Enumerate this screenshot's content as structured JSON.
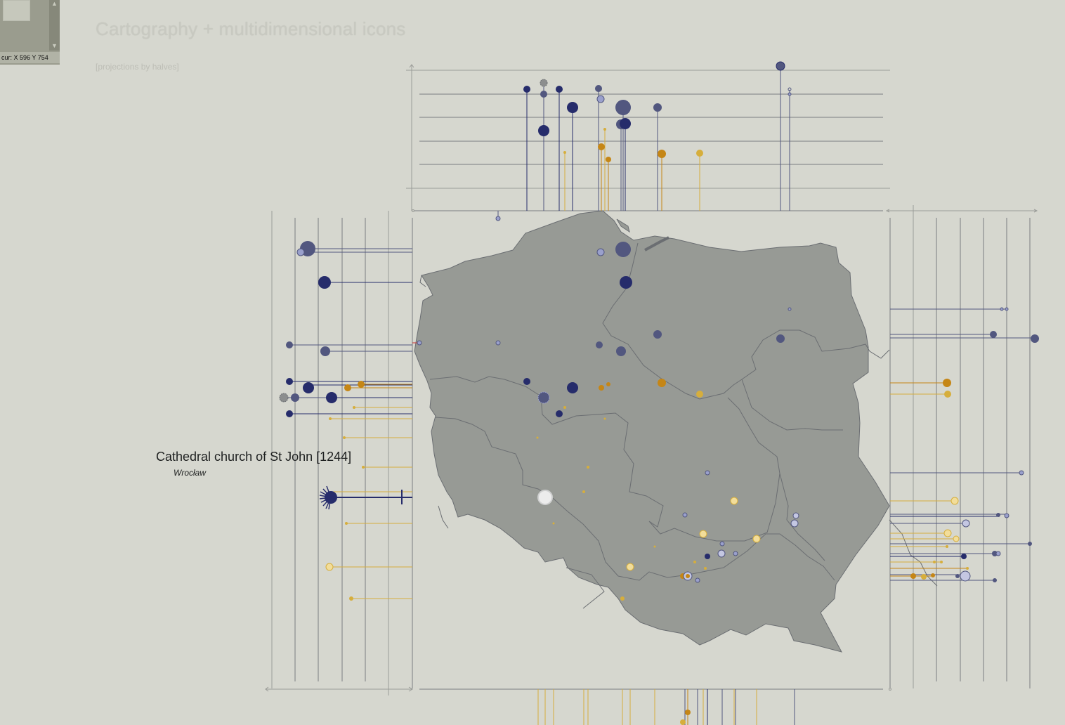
{
  "title": "Cartography + multidimensional icons",
  "subtitle": "[projections by halves]",
  "navigator": {
    "cursor_text": "cur: X 596 Y 754"
  },
  "selection": {
    "name": "Cathedral church of St John [1244]",
    "city": "Wrocław"
  },
  "colors": {
    "background": "#d6d7cf",
    "land": "#979a95",
    "border": "#6b6e72",
    "navy": "#262c6b",
    "slate": "#52577f",
    "lavender": "#9aa0cc",
    "orange": "#c58616",
    "gold": "#d6ae3c",
    "cream": "#f2dd9a",
    "grey_guide": "#7b7e82"
  },
  "icons": {
    "scroll_up": "▲",
    "scroll_down": "▼"
  }
}
